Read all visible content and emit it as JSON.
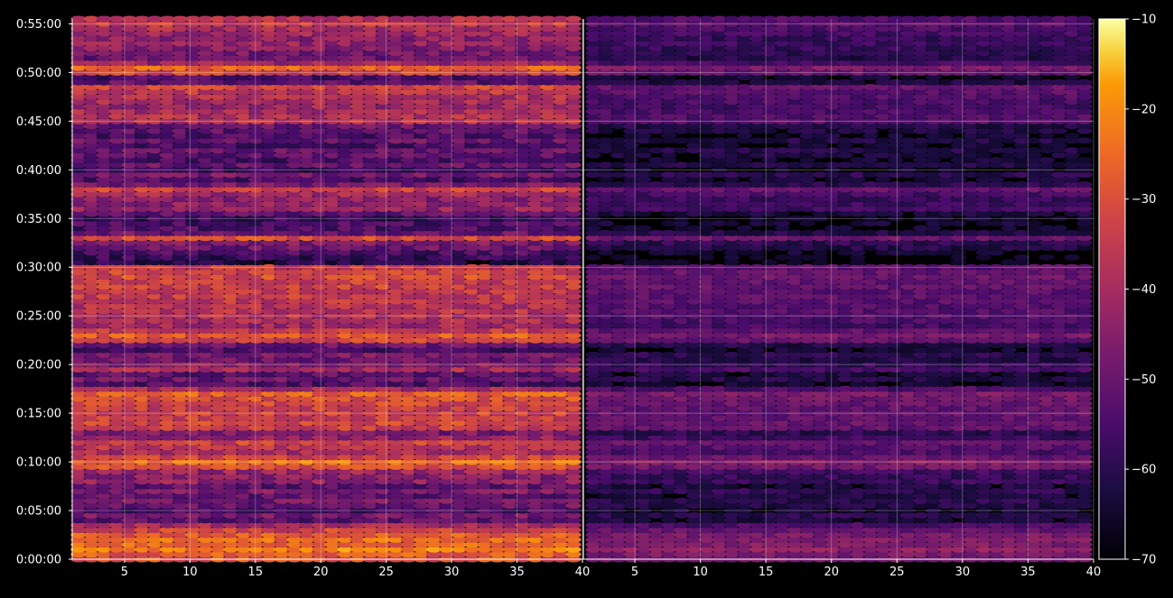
{
  "chart_data": {
    "type": "heatmap",
    "title": "",
    "background": "#000000",
    "grid": true,
    "colormap": "inferno",
    "panels": [
      {
        "id": "left",
        "xlim": [
          1,
          40
        ],
        "x_ticks": [
          5,
          10,
          15,
          20,
          25,
          30,
          35,
          40
        ],
        "x_tick_labels": [
          "5",
          "10",
          "15",
          "20",
          "25",
          "30",
          "35",
          "40"
        ],
        "intensity_scale": 1.0
      },
      {
        "id": "right",
        "xlim": [
          1,
          40
        ],
        "x_ticks": [
          5,
          10,
          15,
          20,
          25,
          30,
          35,
          40
        ],
        "x_tick_labels": [
          "5",
          "10",
          "15",
          "20",
          "25",
          "30",
          "35",
          "40"
        ],
        "intensity_scale": 0.62
      }
    ],
    "y_axis": {
      "range_seconds": [
        0,
        3330
      ],
      "ticks": [
        "0:00:00",
        "0:05:00",
        "0:10:00",
        "0:15:00",
        "0:20:00",
        "0:25:00",
        "0:30:00",
        "0:35:00",
        "0:40:00",
        "0:45:00",
        "0:50:00",
        "0:55:00"
      ]
    },
    "colorbar": {
      "range": [
        -70,
        -10
      ],
      "ticks": [
        "-10",
        "-20",
        "-30",
        "-40",
        "-50",
        "-60",
        "-70"
      ]
    },
    "row_profile_dB": [
      {
        "t": 0.0,
        "v": -30
      },
      {
        "t": 0.5,
        "v": -28
      },
      {
        "t": 1.0,
        "v": -22
      },
      {
        "t": 1.5,
        "v": -26
      },
      {
        "t": 2.0,
        "v": -25
      },
      {
        "t": 2.5,
        "v": -28
      },
      {
        "t": 3.0,
        "v": -33
      },
      {
        "t": 3.5,
        "v": -40
      },
      {
        "t": 4.0,
        "v": -52
      },
      {
        "t": 4.5,
        "v": -48
      },
      {
        "t": 5.0,
        "v": -55
      },
      {
        "t": 5.5,
        "v": -50
      },
      {
        "t": 6.0,
        "v": -48
      },
      {
        "t": 6.5,
        "v": -52
      },
      {
        "t": 7.0,
        "v": -47
      },
      {
        "t": 7.5,
        "v": -52
      },
      {
        "t": 8.0,
        "v": -44
      },
      {
        "t": 8.5,
        "v": -45
      },
      {
        "t": 9.0,
        "v": -42
      },
      {
        "t": 9.5,
        "v": -30
      },
      {
        "t": 10.0,
        "v": -24
      },
      {
        "t": 10.5,
        "v": -33
      },
      {
        "t": 11.0,
        "v": -40
      },
      {
        "t": 11.5,
        "v": -37
      },
      {
        "t": 12.0,
        "v": -33
      },
      {
        "t": 12.5,
        "v": -44
      },
      {
        "t": 13.0,
        "v": -48
      },
      {
        "t": 13.5,
        "v": -34
      },
      {
        "t": 14.0,
        "v": -32
      },
      {
        "t": 14.5,
        "v": -34
      },
      {
        "t": 15.0,
        "v": -33
      },
      {
        "t": 15.5,
        "v": -34
      },
      {
        "t": 16.0,
        "v": -32
      },
      {
        "t": 16.5,
        "v": -30
      },
      {
        "t": 17.0,
        "v": -27
      },
      {
        "t": 17.5,
        "v": -40
      },
      {
        "t": 18.0,
        "v": -55
      },
      {
        "t": 18.5,
        "v": -50
      },
      {
        "t": 19.0,
        "v": -52
      },
      {
        "t": 19.5,
        "v": -40
      },
      {
        "t": 20.0,
        "v": -45
      },
      {
        "t": 20.5,
        "v": -50
      },
      {
        "t": 21.0,
        "v": -48
      },
      {
        "t": 21.5,
        "v": -55
      },
      {
        "t": 22.0,
        "v": -50
      },
      {
        "t": 22.5,
        "v": -33
      },
      {
        "t": 23.0,
        "v": -28
      },
      {
        "t": 23.5,
        "v": -35
      },
      {
        "t": 24.0,
        "v": -42
      },
      {
        "t": 24.5,
        "v": -40
      },
      {
        "t": 25.0,
        "v": -38
      },
      {
        "t": 25.5,
        "v": -37
      },
      {
        "t": 26.0,
        "v": -38
      },
      {
        "t": 26.5,
        "v": -36
      },
      {
        "t": 27.0,
        "v": -35
      },
      {
        "t": 27.5,
        "v": -36
      },
      {
        "t": 28.0,
        "v": -33
      },
      {
        "t": 28.5,
        "v": -34
      },
      {
        "t": 29.0,
        "v": -31
      },
      {
        "t": 29.5,
        "v": -33
      },
      {
        "t": 30.0,
        "v": -35
      },
      {
        "t": 30.5,
        "v": -60
      },
      {
        "t": 31.0,
        "v": -58
      },
      {
        "t": 31.5,
        "v": -55
      },
      {
        "t": 32.0,
        "v": -50
      },
      {
        "t": 32.5,
        "v": -47
      },
      {
        "t": 33.0,
        "v": -31
      },
      {
        "t": 33.5,
        "v": -50
      },
      {
        "t": 34.0,
        "v": -55
      },
      {
        "t": 34.5,
        "v": -55
      },
      {
        "t": 35.0,
        "v": -58
      },
      {
        "t": 35.5,
        "v": -52
      },
      {
        "t": 36.0,
        "v": -43
      },
      {
        "t": 36.5,
        "v": -44
      },
      {
        "t": 37.0,
        "v": -45
      },
      {
        "t": 37.5,
        "v": -41
      },
      {
        "t": 38.0,
        "v": -33
      },
      {
        "t": 38.5,
        "v": -48
      },
      {
        "t": 39.0,
        "v": -55
      },
      {
        "t": 39.5,
        "v": -48
      },
      {
        "t": 40.0,
        "v": -58
      },
      {
        "t": 40.5,
        "v": -50
      },
      {
        "t": 41.0,
        "v": -55
      },
      {
        "t": 41.5,
        "v": -52
      },
      {
        "t": 42.0,
        "v": -50
      },
      {
        "t": 42.5,
        "v": -55
      },
      {
        "t": 43.0,
        "v": -50
      },
      {
        "t": 43.5,
        "v": -55
      },
      {
        "t": 44.0,
        "v": -52
      },
      {
        "t": 44.5,
        "v": -50
      },
      {
        "t": 45.0,
        "v": -37
      },
      {
        "t": 45.5,
        "v": -38
      },
      {
        "t": 46.0,
        "v": -40
      },
      {
        "t": 46.5,
        "v": -42
      },
      {
        "t": 47.0,
        "v": -40
      },
      {
        "t": 47.5,
        "v": -38
      },
      {
        "t": 48.0,
        "v": -36
      },
      {
        "t": 48.5,
        "v": -33
      },
      {
        "t": 49.0,
        "v": -52
      },
      {
        "t": 49.5,
        "v": -55
      },
      {
        "t": 50.0,
        "v": -33
      },
      {
        "t": 50.5,
        "v": -27
      },
      {
        "t": 51.0,
        "v": -42
      },
      {
        "t": 51.5,
        "v": -50
      },
      {
        "t": 52.0,
        "v": -48
      },
      {
        "t": 52.5,
        "v": -45
      },
      {
        "t": 53.0,
        "v": -43
      },
      {
        "t": 53.5,
        "v": -45
      },
      {
        "t": 54.0,
        "v": -42
      },
      {
        "t": 54.5,
        "v": -40
      },
      {
        "t": 55.0,
        "v": -35
      },
      {
        "t": 55.5,
        "v": -38
      }
    ]
  }
}
